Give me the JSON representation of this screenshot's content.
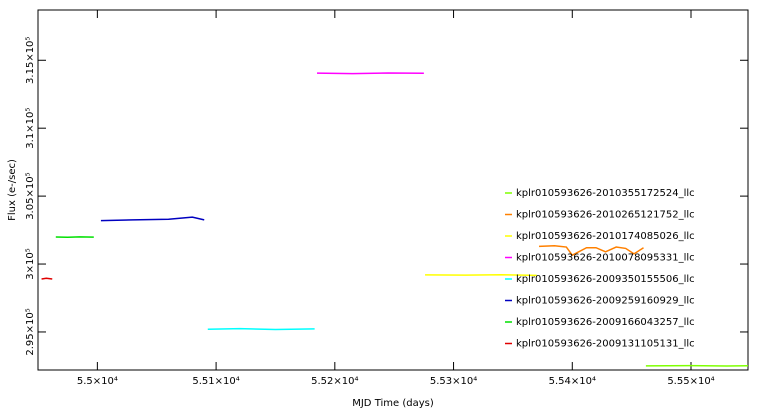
{
  "chart_data": {
    "type": "line",
    "x_label": "MJD Time (days)",
    "y_label": "Flux (e-/sec)",
    "xlim": [
      54950,
      55548
    ],
    "ylim": [
      292200,
      318700
    ],
    "xticks": [
      {
        "value": 55000,
        "label": "5.5×10⁴"
      },
      {
        "value": 55100,
        "label": "5.51×10⁴"
      },
      {
        "value": 55200,
        "label": "5.52×10⁴"
      },
      {
        "value": 55300,
        "label": "5.53×10⁴"
      },
      {
        "value": 55400,
        "label": "5.54×10⁴"
      },
      {
        "value": 55500,
        "label": "5.55×10⁴"
      }
    ],
    "yticks": [
      {
        "value": 295000,
        "label": "2.95×10⁵"
      },
      {
        "value": 300000,
        "label": "3×10⁵"
      },
      {
        "value": 305000,
        "label": "3.05×10⁵"
      },
      {
        "value": 310000,
        "label": "3.1×10⁵"
      },
      {
        "value": 315000,
        "label": "3.15×10⁵"
      }
    ],
    "series": [
      {
        "name": "kplr010593626-2010355172524_llc",
        "color": "#7fff00",
        "x": [
          55462,
          55500,
          55530,
          55548
        ],
        "values": [
          292500,
          292520,
          292490,
          292510
        ]
      },
      {
        "name": "kplr010593626-2010265121752_llc",
        "color": "#ff8000",
        "x": [
          55372,
          55385,
          55395,
          55400,
          55412,
          55420,
          55428,
          55437,
          55445,
          55452,
          55460
        ],
        "values": [
          301300,
          301350,
          301250,
          300650,
          301200,
          301200,
          300900,
          301250,
          301150,
          300750,
          301200
        ]
      },
      {
        "name": "kplr010593626-2010174085026_llc",
        "color": "#ffff00",
        "x": [
          55276,
          55310,
          55340,
          55370
        ],
        "values": [
          299200,
          299180,
          299210,
          299170
        ]
      },
      {
        "name": "kplr010593626-2010078095331_llc",
        "color": "#ff00ff",
        "x": [
          55185,
          55215,
          55245,
          55275
        ],
        "values": [
          314050,
          314020,
          314060,
          314040
        ]
      },
      {
        "name": "kplr010593626-2009350155506_llc",
        "color": "#00ffff",
        "x": [
          55093,
          55120,
          55150,
          55183
        ],
        "values": [
          295200,
          295250,
          295180,
          295230
        ]
      },
      {
        "name": "kplr010593626-2009259160929_llc",
        "color": "#0000c0",
        "x": [
          55003,
          55030,
          55060,
          55080,
          55090
        ],
        "values": [
          303200,
          303250,
          303300,
          303450,
          303250
        ]
      },
      {
        "name": "kplr010593626-2009166043257_llc",
        "color": "#00e000",
        "x": [
          54965,
          54975,
          54985,
          54997
        ],
        "values": [
          301990,
          301970,
          302000,
          301980
        ]
      },
      {
        "name": "kplr010593626-2009131105131_llc",
        "color": "#e00000",
        "x": [
          54953,
          54957,
          54962
        ],
        "values": [
          298900,
          298950,
          298900
        ]
      }
    ]
  }
}
